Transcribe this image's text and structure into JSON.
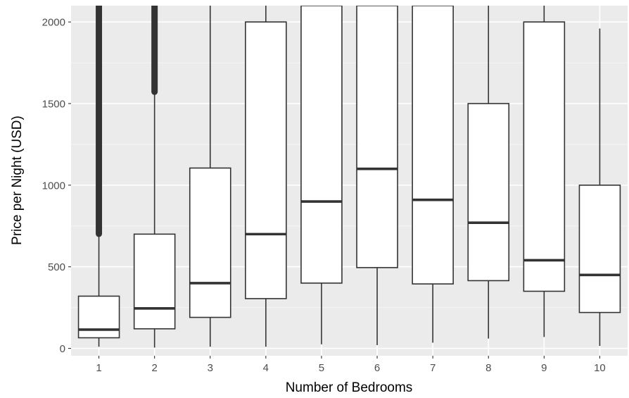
{
  "chart_data": {
    "type": "boxplot",
    "xlabel": "Number of Bedrooms",
    "ylabel": "Price per Night (USD)",
    "categories": [
      "1",
      "2",
      "3",
      "4",
      "5",
      "6",
      "7",
      "8",
      "9",
      "10"
    ],
    "y_ticks": [
      0,
      500,
      1000,
      1500,
      2000
    ],
    "ylim": [
      -45,
      2100
    ],
    "grid": true,
    "legend": "none",
    "colors": {
      "panel_background": "#ebebeb",
      "grid_major": "#ffffff",
      "grid_minor": "#f5f5f5",
      "box_fill": "#ffffff",
      "box_stroke": "#333333",
      "outliers": "#333333"
    },
    "boxes": [
      {
        "category": "1",
        "whisker_low": 10,
        "q1": 65,
        "median": 115,
        "q3": 320,
        "whisker_high": 700,
        "outliers_from": 700
      },
      {
        "category": "2",
        "whisker_low": 5,
        "q1": 120,
        "median": 245,
        "q3": 700,
        "whisker_high": 1570,
        "outliers_from": 1570
      },
      {
        "category": "3",
        "whisker_low": 10,
        "q1": 190,
        "median": 400,
        "q3": 1105,
        "whisker_high": 2100
      },
      {
        "category": "4",
        "whisker_low": 10,
        "q1": 305,
        "median": 700,
        "q3": 2000,
        "whisker_high": 2100
      },
      {
        "category": "5",
        "whisker_low": 25,
        "q1": 400,
        "median": 900,
        "q3": 2100,
        "whisker_high": 2100
      },
      {
        "category": "6",
        "whisker_low": 20,
        "q1": 495,
        "median": 1100,
        "q3": 2100,
        "whisker_high": 2100
      },
      {
        "category": "7",
        "whisker_low": 35,
        "q1": 395,
        "median": 910,
        "q3": 2100,
        "whisker_high": 2100
      },
      {
        "category": "8",
        "whisker_low": 60,
        "q1": 415,
        "median": 770,
        "q3": 1500,
        "whisker_high": 2100
      },
      {
        "category": "9",
        "whisker_low": 70,
        "q1": 350,
        "median": 540,
        "q3": 2000,
        "whisker_high": 2100
      },
      {
        "category": "10",
        "whisker_low": 15,
        "q1": 220,
        "median": 450,
        "q3": 1000,
        "whisker_high": 1960
      }
    ]
  }
}
